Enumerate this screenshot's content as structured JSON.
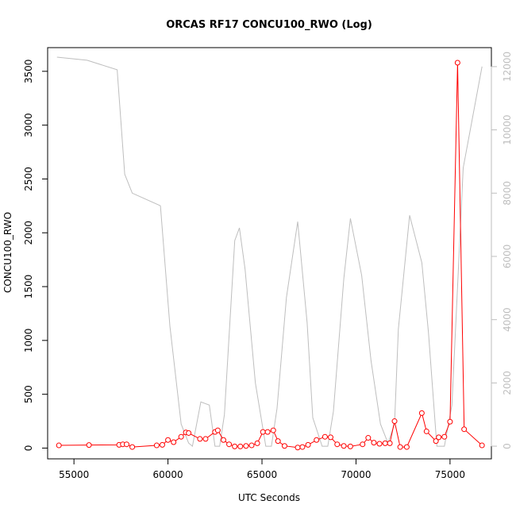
{
  "chart_data": {
    "type": "line",
    "title": "ORCAS RF17 CONCU100_RWO (Log)",
    "xlabel": "UTC Seconds",
    "ylabel": "CONCU100_RWO",
    "xlim": [
      53600,
      77200
    ],
    "ylim": [
      -100,
      3720
    ],
    "y2lim": [
      -400,
      12600
    ],
    "x_ticks": [
      55000,
      60000,
      65000,
      70000,
      75000
    ],
    "y_ticks": [
      0,
      500,
      1000,
      1500,
      2000,
      2500,
      3000,
      3500
    ],
    "y2_ticks": [
      0,
      2000,
      4000,
      6000,
      8000,
      10000,
      12000
    ],
    "grid": false,
    "colors": {
      "primary": "#ff0000",
      "secondary": "#bebebe",
      "axis": "#000000"
    },
    "series": [
      {
        "axis": "left",
        "color": "#ff0000",
        "style": "line+points",
        "x": [
          54200,
          55800,
          57400,
          57600,
          57800,
          58100,
          59400,
          59700,
          60000,
          60300,
          60700,
          60950,
          61100,
          61700,
          62000,
          62500,
          62650,
          62950,
          63250,
          63550,
          63850,
          64150,
          64450,
          64750,
          65050,
          65300,
          65600,
          65850,
          66200,
          66900,
          67150,
          67450,
          67900,
          68350,
          68650,
          69000,
          69350,
          69700,
          70350,
          70650,
          70950,
          71250,
          71550,
          71800,
          72050,
          72350,
          72700,
          73500,
          73750,
          74250,
          74400,
          74700,
          75000,
          75400,
          75750,
          76700
        ],
        "y": [
          25,
          28,
          30,
          35,
          35,
          10,
          25,
          30,
          75,
          55,
          105,
          145,
          140,
          85,
          85,
          150,
          165,
          75,
          35,
          15,
          15,
          20,
          25,
          45,
          150,
          150,
          165,
          65,
          20,
          5,
          10,
          30,
          75,
          105,
          100,
          35,
          20,
          15,
          35,
          95,
          50,
          40,
          45,
          45,
          250,
          10,
          10,
          325,
          155,
          65,
          100,
          105,
          245,
          3580,
          175,
          25
        ]
      },
      {
        "axis": "right",
        "color": "#bebebe",
        "style": "line",
        "x": [
          54100,
          55700,
          57300,
          57700,
          58100,
          59600,
          60100,
          60700,
          61100,
          61300,
          61750,
          62200,
          62500,
          62750,
          63000,
          63550,
          63800,
          64100,
          64650,
          65200,
          65500,
          65800,
          66300,
          66900,
          67400,
          67700,
          68200,
          68500,
          68800,
          69350,
          69700,
          70300,
          70800,
          71300,
          71700,
          72050,
          72250,
          72850,
          73500,
          73850,
          74300,
          74700,
          75100,
          75700,
          76700
        ],
        "y": [
          12300,
          12200,
          11900,
          8600,
          8000,
          7600,
          3800,
          700,
          100,
          0,
          1400,
          1300,
          0,
          0,
          1000,
          6500,
          6900,
          5600,
          2000,
          0,
          0,
          1200,
          4700,
          7100,
          3900,
          900,
          0,
          0,
          1100,
          5300,
          7200,
          5400,
          2700,
          700,
          100,
          700,
          3700,
          7300,
          5800,
          3600,
          0,
          0,
          1300,
          8800,
          12000
        ]
      }
    ]
  }
}
